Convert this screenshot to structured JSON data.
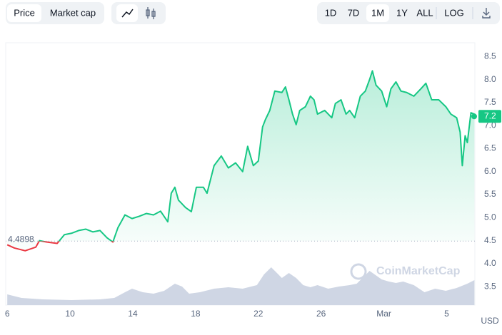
{
  "toolbar": {
    "tabs": [
      "Price",
      "Market cap"
    ],
    "active_tab": 0,
    "ranges": [
      "1D",
      "7D",
      "1M",
      "1Y",
      "ALL",
      "LOG"
    ],
    "active_range": 2
  },
  "watermark": "CoinMarketCap",
  "currency": "USD",
  "chart_data": {
    "type": "line",
    "x": [
      6.0,
      6.45,
      7.14,
      7.82,
      8.05,
      8.5,
      9.18,
      9.64,
      10.09,
      10.55,
      11.0,
      11.45,
      11.91,
      12.36,
      12.73,
      13.05,
      13.5,
      13.95,
      14.41,
      14.86,
      15.32,
      15.77,
      16.23,
      16.45,
      16.68,
      16.91,
      17.36,
      17.73,
      18.05,
      18.5,
      18.73,
      19.18,
      19.64,
      20.09,
      20.55,
      21.0,
      21.32,
      21.68,
      22.0,
      22.27,
      22.45,
      22.73,
      23.05,
      23.5,
      23.73,
      23.95,
      24.18,
      24.41,
      24.64,
      25.0,
      25.32,
      25.55,
      25.77,
      26.23,
      26.68,
      26.91,
      27.27,
      27.59,
      27.82,
      28.14,
      28.5,
      28.82,
      29.09,
      29.27,
      29.5,
      29.86,
      30.18,
      30.45,
      30.77,
      31.09,
      31.45,
      31.91,
      32.36,
      32.68,
      33.05,
      33.5,
      33.95,
      34.27,
      34.64,
      34.86,
      35.0,
      35.18,
      35.32,
      35.55,
      35.77
    ],
    "series": [
      {
        "name": "Price",
        "color": "#16c784",
        "down_color": "#ea3943",
        "values": [
          4.41,
          4.34,
          4.28,
          4.36,
          4.5,
          4.47,
          4.44,
          4.63,
          4.66,
          4.72,
          4.75,
          4.69,
          4.72,
          4.56,
          4.47,
          4.78,
          5.06,
          4.98,
          5.03,
          5.09,
          5.06,
          5.14,
          4.91,
          5.53,
          5.66,
          5.38,
          5.22,
          5.13,
          5.66,
          5.66,
          5.53,
          6.13,
          6.34,
          6.08,
          6.19,
          6.0,
          6.55,
          6.13,
          6.23,
          6.97,
          7.13,
          7.33,
          7.75,
          7.72,
          7.84,
          7.56,
          7.25,
          7.02,
          7.33,
          7.41,
          7.64,
          7.56,
          7.25,
          7.33,
          7.17,
          7.48,
          7.56,
          7.25,
          7.33,
          7.17,
          7.64,
          7.75,
          8.0,
          8.19,
          7.88,
          7.75,
          7.41,
          7.8,
          7.95,
          7.75,
          7.72,
          7.64,
          7.8,
          7.92,
          7.56,
          7.56,
          7.41,
          7.25,
          7.17,
          6.86,
          6.13,
          6.78,
          6.63,
          7.28,
          7.25
        ]
      }
    ],
    "baseline": 4.4898,
    "current_price": 7.2,
    "volume": {
      "color": "#cfd6e4",
      "x": [
        6.0,
        6.91,
        8.27,
        10.09,
        11.91,
        12.82,
        13.5,
        13.95,
        14.64,
        15.32,
        16.0,
        16.68,
        17.14,
        17.59,
        18.27,
        19.18,
        20.09,
        21.0,
        21.91,
        22.36,
        22.82,
        23.05,
        23.5,
        23.95,
        24.41,
        24.86,
        25.32,
        25.77,
        26.45,
        27.14,
        27.82,
        28.27,
        28.73,
        29.09,
        29.41,
        29.86,
        30.32,
        30.77,
        31.23,
        31.91,
        32.59,
        33.27,
        33.95,
        34.64,
        35.32,
        35.77
      ],
      "values": [
        15,
        10,
        8,
        7,
        8,
        10,
        18,
        23,
        18,
        16,
        20,
        30,
        26,
        16,
        18,
        23,
        25,
        23,
        28,
        43,
        53,
        48,
        38,
        45,
        38,
        28,
        25,
        28,
        23,
        26,
        28,
        30,
        40,
        48,
        43,
        36,
        33,
        31,
        33,
        28,
        18,
        23,
        20,
        24,
        30,
        35
      ],
      "lim": [
        0,
        60
      ]
    },
    "xlim": [
      5.9,
      35.8
    ],
    "xticks": [
      6,
      10,
      14,
      18,
      22,
      26,
      {
        "value": 30,
        "label": "Mar"
      },
      {
        "value": 34,
        "label": "5"
      }
    ],
    "ylim": [
      3.1,
      8.8
    ],
    "yticks": [
      {
        "value": 3.5,
        "label": "3.5"
      },
      {
        "value": 4,
        "label": "4.0"
      },
      4.5,
      {
        "value": 5,
        "label": "5.0"
      },
      5.5,
      {
        "value": 6,
        "label": "6.0"
      },
      6.5,
      {
        "value": 7,
        "label": "7.0"
      },
      7.5,
      {
        "value": 8,
        "label": "8.0"
      },
      8.5
    ]
  }
}
